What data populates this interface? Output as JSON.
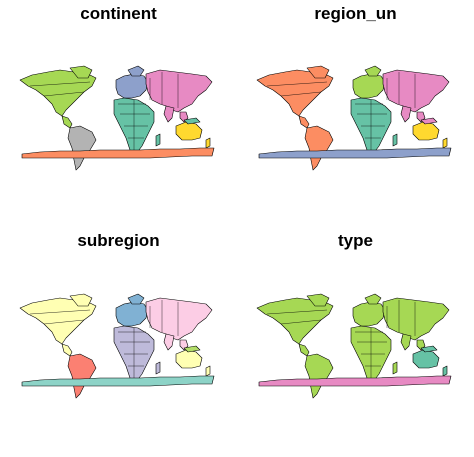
{
  "figure": {
    "panels": [
      {
        "title": "continent",
        "colors": {
          "north_america": "#A6D854",
          "south_america": "#B3B3B3",
          "europe": "#8DA0CB",
          "africa": "#66C2A5",
          "asia": "#E78AC3",
          "oceania": "#FFD92F",
          "antarctica": "#FC8D62",
          "small": "#66C2A5"
        }
      },
      {
        "title": "region_un",
        "colors": {
          "north_america": "#FC8D62",
          "south_america": "#FC8D62",
          "europe": "#A6D854",
          "africa": "#66C2A5",
          "asia": "#E78AC3",
          "oceania": "#FFD92F",
          "antarctica": "#8DA0CB",
          "small": "#E78AC3"
        }
      },
      {
        "title": "subregion",
        "colors": {
          "north_america": "#FFFFB3",
          "south_america": "#FB8072",
          "europe": "#80B1D3",
          "africa": "#BEBADA",
          "asia": "#FCCDE5",
          "oceania": "#FFFFB3",
          "antarctica": "#8DD3C7",
          "small": "#B3DE69"
        }
      },
      {
        "title": "type",
        "colors": {
          "north_america": "#A6D854",
          "south_america": "#A6D854",
          "europe": "#A6D854",
          "africa": "#A6D854",
          "asia": "#A6D854",
          "oceania": "#66C2A5",
          "antarctica": "#E78AC3",
          "small": "#66C2A5"
        }
      }
    ]
  }
}
